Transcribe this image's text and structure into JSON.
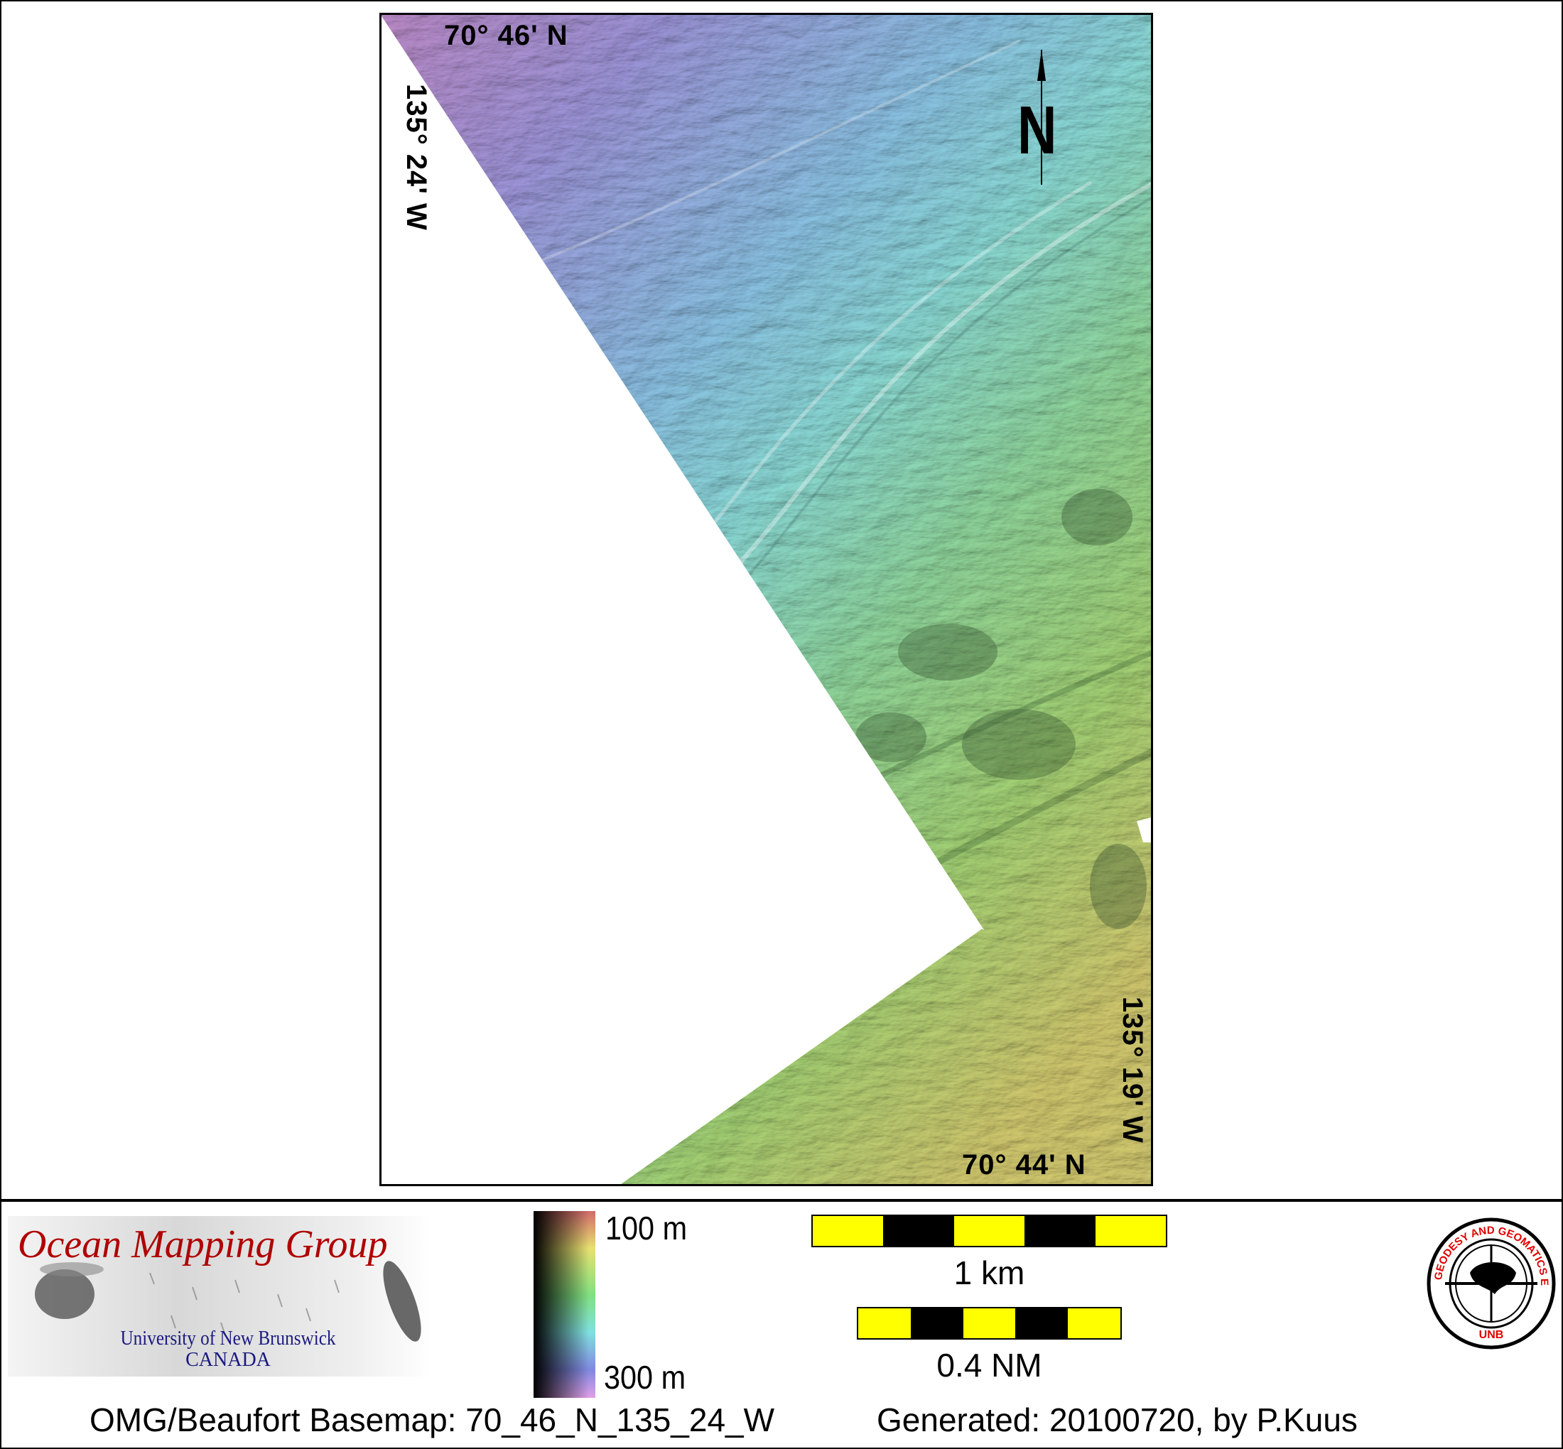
{
  "map": {
    "labels": {
      "top_lat": "70° 46' N",
      "left_lon": "135° 24' W",
      "right_lon": "135° 19' W",
      "bottom_lat": "70° 44' N"
    },
    "north_arrow": {
      "letter": "N"
    },
    "colors": {
      "shallow": "#d8d070",
      "mid": "#8fd9e6",
      "deep": "#b98ed0"
    }
  },
  "legend": {
    "logo": {
      "title": "Ocean Mapping Group",
      "line1": "University of New Brunswick",
      "line2": "CANADA"
    },
    "depth_scale": {
      "top": "100 m",
      "bottom": "300 m"
    },
    "scale_bars": [
      {
        "label": "1 km",
        "segments": 5
      },
      {
        "label": "0.4 NM",
        "segments": 5
      }
    ],
    "unb_logo": {
      "ring_text": "GEODESY AND GEOMATICS ENGINEERING",
      "bottom_text": "UNB"
    }
  },
  "footer": {
    "basemap": "OMG/Beaufort Basemap: 70_46_N_135_24_W",
    "generated": "Generated: 20100720, by P.Kuus"
  }
}
